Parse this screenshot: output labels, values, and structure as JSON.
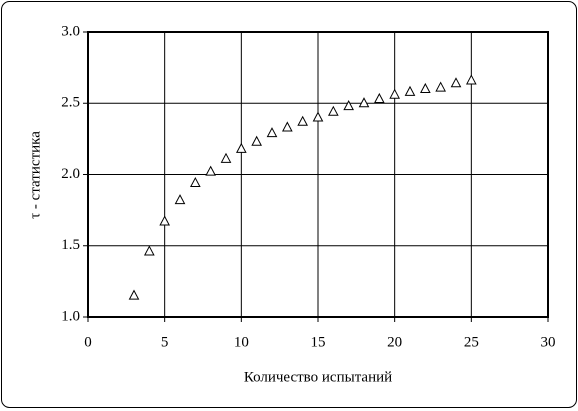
{
  "chart_data": {
    "type": "scatter",
    "xlabel": "Количество испытаний",
    "ylabel": "τ - статистика",
    "series": [
      {
        "marker": "triangle",
        "color": "#000000",
        "x": [
          3,
          4,
          5,
          6,
          7,
          8,
          9,
          10,
          11,
          12,
          13,
          14,
          15,
          16,
          17,
          18,
          19,
          20,
          21,
          22,
          23,
          24,
          25
        ],
        "values": [
          1.15,
          1.46,
          1.67,
          1.82,
          1.94,
          2.02,
          2.11,
          2.18,
          2.23,
          2.29,
          2.33,
          2.37,
          2.4,
          2.44,
          2.48,
          2.5,
          2.53,
          2.56,
          2.58,
          2.6,
          2.61,
          2.64,
          2.66
        ]
      }
    ],
    "xlim": [
      0,
      30
    ],
    "xticks": [
      0,
      5,
      10,
      15,
      20,
      25,
      30
    ],
    "ylim": [
      1,
      3
    ],
    "yticks": [
      {
        "value": 1,
        "label": "1.0"
      },
      1.5,
      {
        "value": 2,
        "label": "2.0"
      },
      2.5,
      {
        "value": 3,
        "label": "3.0"
      }
    ],
    "grid": true
  }
}
